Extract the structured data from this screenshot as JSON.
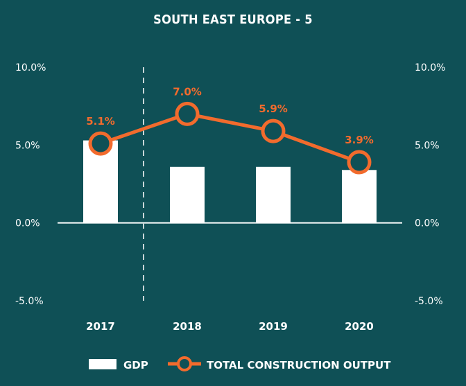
{
  "title": "SOUTH EAST EUROPE - 5",
  "colors": {
    "background": "#0f5056",
    "bar": "#ffffff",
    "line": "#f26b2d",
    "axis": "#ffffff",
    "divider": "#c9d6d7"
  },
  "chart_data": {
    "type": "bar+line",
    "categories": [
      "2017",
      "2018",
      "2019",
      "2020"
    ],
    "series": [
      {
        "name": "GDP",
        "type": "bar",
        "values": [
          5.3,
          3.6,
          3.6,
          3.4
        ]
      },
      {
        "name": "TOTAL CONSTRUCTION OUTPUT",
        "type": "line",
        "values": [
          5.1,
          7.0,
          5.9,
          3.9
        ],
        "labels": [
          "5.1%",
          "7.0%",
          "5.9%",
          "3.9%"
        ]
      }
    ],
    "ylim": [
      -5.0,
      10.0
    ],
    "left_ticks": [
      "10.0%",
      "5.0%",
      "0.0%",
      "-5.0%"
    ],
    "right_ticks": [
      "10.0%",
      "5.0%",
      "0.0%",
      "-5.0%"
    ],
    "tick_values": [
      10.0,
      5.0,
      0.0,
      -5.0
    ],
    "divider_after_category": "2017",
    "legend": [
      "GDP",
      "TOTAL CONSTRUCTION OUTPUT"
    ],
    "legend_position": "bottom"
  }
}
